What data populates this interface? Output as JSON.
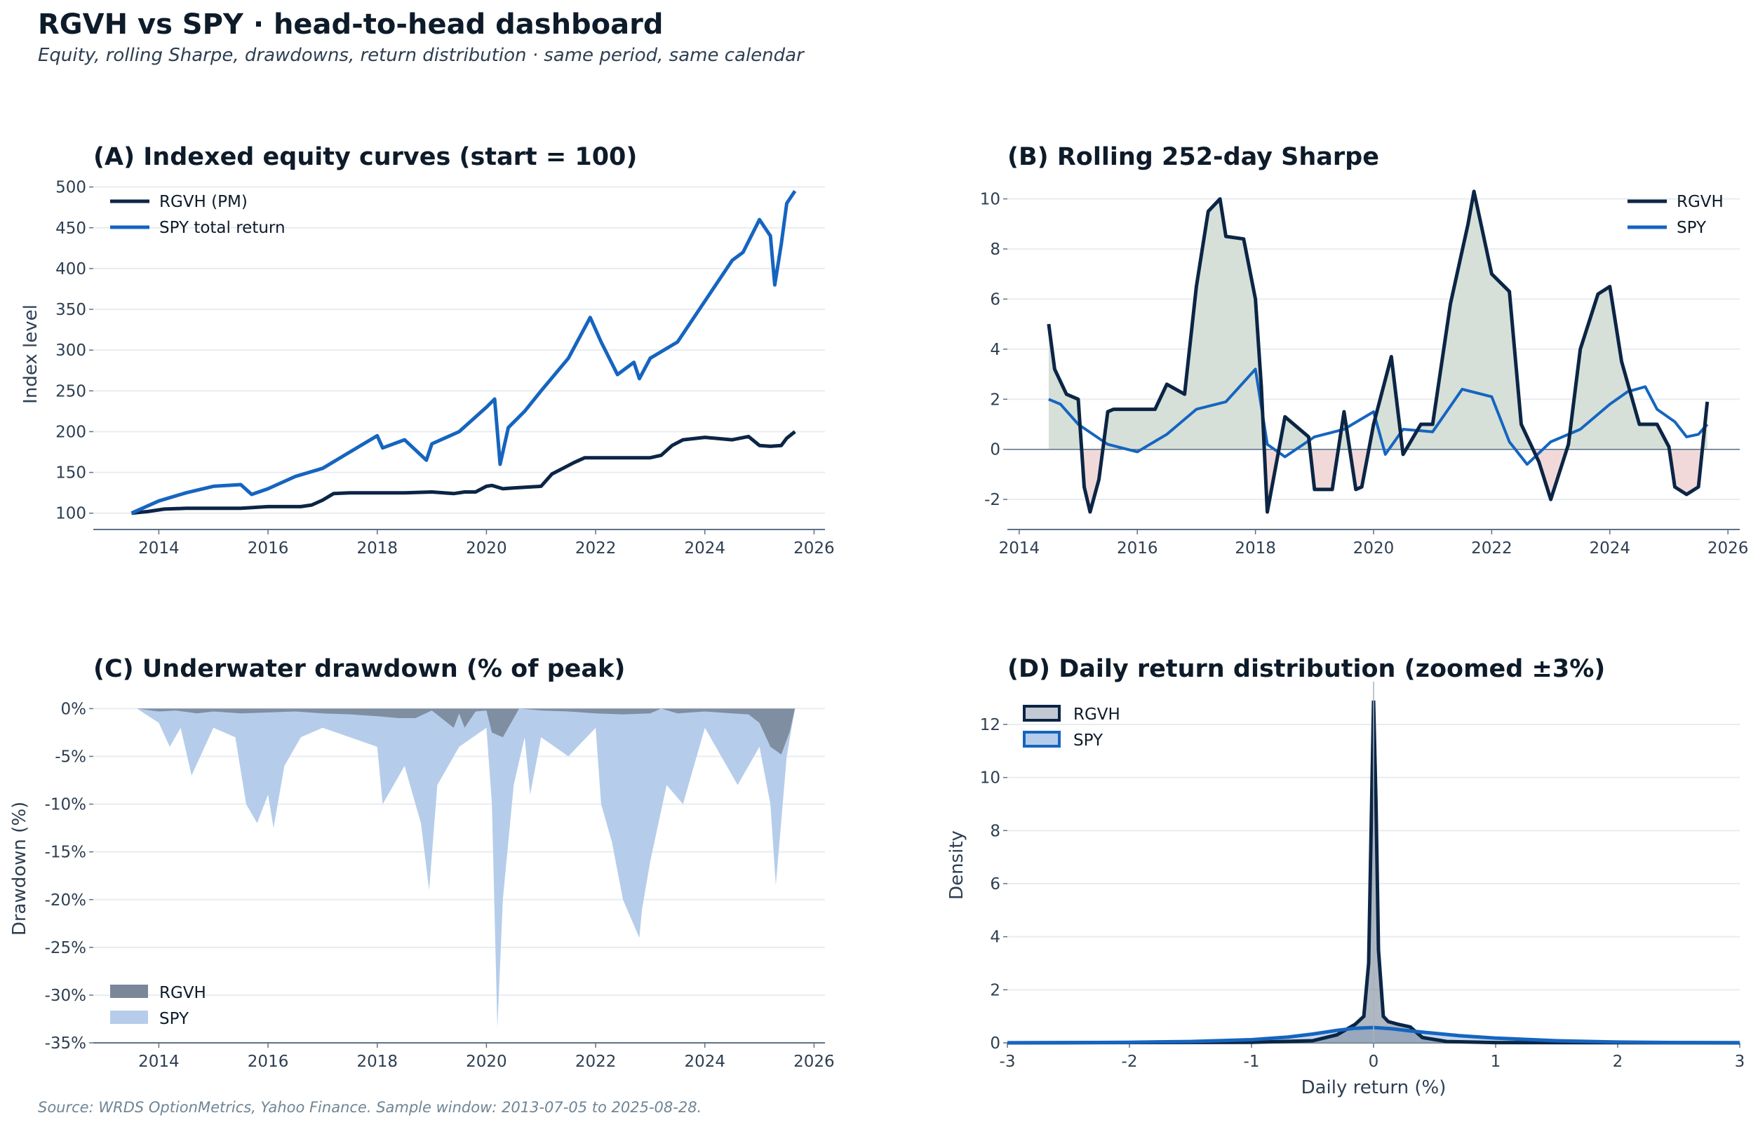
{
  "header": {
    "title": "RGVH vs SPY  ·  head-to-head dashboard",
    "subtitle": "Equity, rolling Sharpe, drawdowns, return distribution  ·  same period, same calendar"
  },
  "footer": {
    "source": "Source: WRDS OptionMetrics, Yahoo Finance.   Sample window: 2013-07-05 to 2025-08-28."
  },
  "colors": {
    "rgvh": "#0b2545",
    "spy": "#1565c0",
    "spy_light": "#b5cdea",
    "rgvh_fill": "#7a8799",
    "pos_fill": "#d6e0d8",
    "neg_fill": "#f1d9d9",
    "grid": "#e9ecef",
    "axis": "#5d7287",
    "tick_text": "#2e3f52"
  },
  "chart_data": [
    {
      "id": "A",
      "type": "line",
      "title": "(A) Indexed equity curves  (start = 100)",
      "xlabel": "",
      "ylabel": "Index level",
      "xlim": [
        2012.8,
        2026.2
      ],
      "ylim": [
        80,
        510
      ],
      "xticks": [
        2014,
        2016,
        2018,
        2020,
        2022,
        2024,
        2026
      ],
      "yticks": [
        100,
        150,
        200,
        250,
        300,
        350,
        400,
        450,
        500
      ],
      "legend": "top-left",
      "grid": true,
      "series": [
        {
          "name": "RGVH (PM)",
          "x": [
            2013.5,
            2013.8,
            2014.1,
            2014.5,
            2015.0,
            2015.5,
            2016.0,
            2016.6,
            2016.8,
            2017.0,
            2017.2,
            2017.5,
            2018.0,
            2018.5,
            2019.0,
            2019.4,
            2019.6,
            2019.8,
            2020.0,
            2020.1,
            2020.3,
            2020.5,
            2021.0,
            2021.2,
            2021.4,
            2021.6,
            2021.8,
            2022.0,
            2022.5,
            2023.0,
            2023.2,
            2023.4,
            2023.6,
            2024.0,
            2024.5,
            2024.8,
            2025.0,
            2025.2,
            2025.4,
            2025.5,
            2025.65
          ],
          "values": [
            100,
            102,
            105,
            106,
            106,
            106,
            108,
            108,
            110,
            116,
            124,
            125,
            125,
            125,
            126,
            124,
            126,
            126,
            133,
            134,
            130,
            131,
            133,
            148,
            155,
            162,
            168,
            168,
            168,
            168,
            171,
            183,
            190,
            193,
            190,
            194,
            183,
            182,
            183,
            192,
            200
          ]
        },
        {
          "name": "SPY total return",
          "x": [
            2013.5,
            2014.0,
            2014.5,
            2015.0,
            2015.5,
            2015.7,
            2016.0,
            2016.5,
            2017.0,
            2017.5,
            2018.0,
            2018.1,
            2018.5,
            2018.9,
            2019.0,
            2019.5,
            2020.0,
            2020.15,
            2020.25,
            2020.4,
            2020.7,
            2021.0,
            2021.5,
            2021.9,
            2022.1,
            2022.4,
            2022.7,
            2022.8,
            2023.0,
            2023.5,
            2024.0,
            2024.5,
            2024.7,
            2025.0,
            2025.2,
            2025.28,
            2025.4,
            2025.5,
            2025.65
          ],
          "values": [
            100,
            115,
            125,
            133,
            135,
            123,
            130,
            145,
            155,
            175,
            195,
            180,
            190,
            165,
            185,
            200,
            230,
            240,
            160,
            205,
            225,
            250,
            290,
            340,
            310,
            270,
            285,
            265,
            290,
            310,
            360,
            410,
            420,
            460,
            440,
            380,
            430,
            480,
            495
          ]
        }
      ]
    },
    {
      "id": "B",
      "type": "line",
      "title": "(B) Rolling 252-day Sharpe",
      "xlabel": "",
      "ylabel": "",
      "xlim": [
        2013.8,
        2026.2
      ],
      "ylim": [
        -3.2,
        10.8
      ],
      "xticks": [
        2014,
        2016,
        2018,
        2020,
        2022,
        2024,
        2026
      ],
      "yticks": [
        -2,
        0,
        2,
        4,
        6,
        8,
        10
      ],
      "legend": "top-right",
      "grid": true,
      "zero_line": true,
      "fill_between_zero": "RGVH",
      "series": [
        {
          "name": "RGVH",
          "x": [
            2014.5,
            2014.6,
            2014.8,
            2015.0,
            2015.1,
            2015.2,
            2015.35,
            2015.5,
            2015.6,
            2016.0,
            2016.3,
            2016.5,
            2016.8,
            2017.0,
            2017.2,
            2017.4,
            2017.5,
            2017.8,
            2018.0,
            2018.1,
            2018.2,
            2018.5,
            2018.9,
            2019.0,
            2019.3,
            2019.5,
            2019.7,
            2019.8,
            2020.0,
            2020.3,
            2020.5,
            2020.8,
            2021.0,
            2021.3,
            2021.6,
            2021.7,
            2022.0,
            2022.3,
            2022.5,
            2022.8,
            2023.0,
            2023.3,
            2023.5,
            2023.8,
            2024.0,
            2024.2,
            2024.5,
            2024.8,
            2025.0,
            2025.1,
            2025.3,
            2025.5,
            2025.65
          ],
          "values": [
            5,
            3.2,
            2.2,
            2.0,
            -1.5,
            -2.5,
            -1.2,
            1.5,
            1.6,
            1.6,
            1.6,
            2.6,
            2.2,
            6.5,
            9.5,
            10.0,
            8.5,
            8.4,
            6.0,
            2.5,
            -2.5,
            1.3,
            0.5,
            -1.6,
            -1.6,
            1.5,
            -1.6,
            -1.5,
            1.0,
            3.7,
            -0.2,
            1.0,
            1.0,
            5.8,
            9.0,
            10.3,
            7.0,
            6.3,
            1.0,
            -0.5,
            -2.0,
            0.2,
            4.0,
            6.2,
            6.5,
            3.5,
            1.0,
            1.0,
            0.1,
            -1.5,
            -1.8,
            -1.5,
            1.9
          ]
        },
        {
          "name": "SPY",
          "x": [
            2014.5,
            2014.7,
            2015.0,
            2015.5,
            2016.0,
            2016.5,
            2017.0,
            2017.5,
            2018.0,
            2018.2,
            2018.5,
            2019.0,
            2019.5,
            2020.0,
            2020.2,
            2020.5,
            2021.0,
            2021.5,
            2022.0,
            2022.3,
            2022.6,
            2023.0,
            2023.5,
            2024.0,
            2024.3,
            2024.6,
            2024.8,
            2025.1,
            2025.3,
            2025.5,
            2025.65
          ],
          "values": [
            2.0,
            1.8,
            1.0,
            0.2,
            -0.1,
            0.6,
            1.6,
            1.9,
            3.2,
            0.2,
            -0.3,
            0.5,
            0.8,
            1.5,
            -0.2,
            0.8,
            0.7,
            2.4,
            2.1,
            0.3,
            -0.6,
            0.3,
            0.8,
            1.8,
            2.3,
            2.5,
            1.6,
            1.1,
            0.5,
            0.6,
            1.0
          ]
        }
      ]
    },
    {
      "id": "C",
      "type": "area",
      "title": "(C) Underwater drawdown  (% of peak)",
      "xlabel": "",
      "ylabel": "Drawdown  (%)",
      "xlim": [
        2012.8,
        2026.2
      ],
      "ylim": [
        -35,
        1.5
      ],
      "xticks": [
        2014,
        2016,
        2018,
        2020,
        2022,
        2024,
        2026
      ],
      "yticks": [
        0,
        -5,
        -10,
        -15,
        -20,
        -25,
        -30,
        -35
      ],
      "ytick_labels": [
        "0%",
        "-5%",
        "-10%",
        "-15%",
        "-20%",
        "-25%",
        "-30%",
        "-35%"
      ],
      "legend": "bottom-left",
      "grid": true,
      "series": [
        {
          "name": "RGVH",
          "x": [
            2013.6,
            2014.0,
            2014.3,
            2014.7,
            2015.0,
            2015.5,
            2016.0,
            2016.5,
            2017.0,
            2017.5,
            2018.0,
            2018.4,
            2018.7,
            2019.0,
            2019.4,
            2019.5,
            2019.6,
            2019.8,
            2020.0,
            2020.1,
            2020.3,
            2020.5,
            2020.6,
            2021.0,
            2021.5,
            2022.0,
            2022.5,
            2023.0,
            2023.2,
            2023.5,
            2024.0,
            2024.5,
            2024.8,
            2025.0,
            2025.2,
            2025.4,
            2025.55,
            2025.65
          ],
          "values": [
            0,
            -0.3,
            -0.2,
            -0.5,
            -0.3,
            -0.5,
            -0.4,
            -0.3,
            -0.5,
            -0.6,
            -0.8,
            -1.0,
            -1.0,
            -0.2,
            -2.0,
            -0.5,
            -2.0,
            -0.3,
            -0.2,
            -2.5,
            -3.0,
            -1.0,
            0,
            -0.2,
            -0.3,
            -0.5,
            -0.6,
            -0.5,
            0,
            -0.5,
            -0.3,
            -0.5,
            -0.6,
            -1.5,
            -4.0,
            -4.8,
            -2.5,
            0
          ]
        },
        {
          "name": "SPY",
          "x": [
            2013.6,
            2014.0,
            2014.2,
            2014.4,
            2014.6,
            2015.0,
            2015.4,
            2015.6,
            2015.8,
            2016.0,
            2016.1,
            2016.3,
            2016.6,
            2017.0,
            2017.5,
            2018.0,
            2018.1,
            2018.3,
            2018.5,
            2018.8,
            2018.95,
            2019.1,
            2019.5,
            2020.0,
            2020.1,
            2020.2,
            2020.3,
            2020.5,
            2020.7,
            2020.8,
            2021.0,
            2021.5,
            2022.0,
            2022.1,
            2022.3,
            2022.5,
            2022.8,
            2022.85,
            2023.0,
            2023.3,
            2023.6,
            2024.0,
            2024.3,
            2024.6,
            2025.0,
            2025.2,
            2025.3,
            2025.5,
            2025.65
          ],
          "values": [
            0,
            -1.5,
            -4.0,
            -2.0,
            -7.0,
            -2.0,
            -3.0,
            -10.0,
            -12.0,
            -9.0,
            -12.5,
            -6.0,
            -3.0,
            -2.0,
            -3.0,
            -4.0,
            -10.0,
            -8.0,
            -6.0,
            -12.0,
            -19.0,
            -8.0,
            -4.0,
            -2.0,
            -10.0,
            -33.5,
            -20.0,
            -8.0,
            -3.0,
            -9.0,
            -3.0,
            -5.0,
            -2.0,
            -10.0,
            -14.0,
            -20.0,
            -24.0,
            -21.0,
            -16.0,
            -8.0,
            -10.0,
            -2.0,
            -5.0,
            -8.0,
            -4.0,
            -10.0,
            -18.5,
            -5.0,
            0
          ]
        }
      ]
    },
    {
      "id": "D",
      "type": "area",
      "title": "(D) Daily return distribution  (zoomed ±3%)",
      "xlabel": "Daily return  (%)",
      "ylabel": "Density",
      "xlim": [
        -3,
        3
      ],
      "ylim": [
        0,
        13.4
      ],
      "xticks": [
        -3,
        -2,
        -1,
        0,
        1,
        2,
        3
      ],
      "yticks": [
        0,
        2,
        4,
        6,
        8,
        10,
        12
      ],
      "legend": "top-left",
      "grid": true,
      "series": [
        {
          "name": "RGVH",
          "x": [
            -3,
            -1.0,
            -0.5,
            -0.3,
            -0.15,
            -0.08,
            -0.04,
            -0.02,
            0,
            0.02,
            0.04,
            0.08,
            0.12,
            0.2,
            0.3,
            0.4,
            0.6,
            1.0,
            3
          ],
          "values": [
            0,
            0.02,
            0.08,
            0.3,
            0.7,
            1.0,
            3.0,
            8.0,
            12.9,
            9.0,
            3.5,
            1.0,
            0.8,
            0.7,
            0.6,
            0.2,
            0.05,
            0.01,
            0
          ]
        },
        {
          "name": "SPY",
          "x": [
            -3,
            -2.5,
            -2.0,
            -1.5,
            -1.0,
            -0.7,
            -0.5,
            -0.3,
            -0.15,
            0,
            0.15,
            0.3,
            0.5,
            0.7,
            1.0,
            1.5,
            2.0,
            2.5,
            3
          ],
          "values": [
            0.003,
            0.008,
            0.02,
            0.05,
            0.12,
            0.22,
            0.33,
            0.47,
            0.55,
            0.58,
            0.53,
            0.45,
            0.36,
            0.27,
            0.18,
            0.08,
            0.03,
            0.01,
            0.004
          ]
        }
      ]
    }
  ]
}
